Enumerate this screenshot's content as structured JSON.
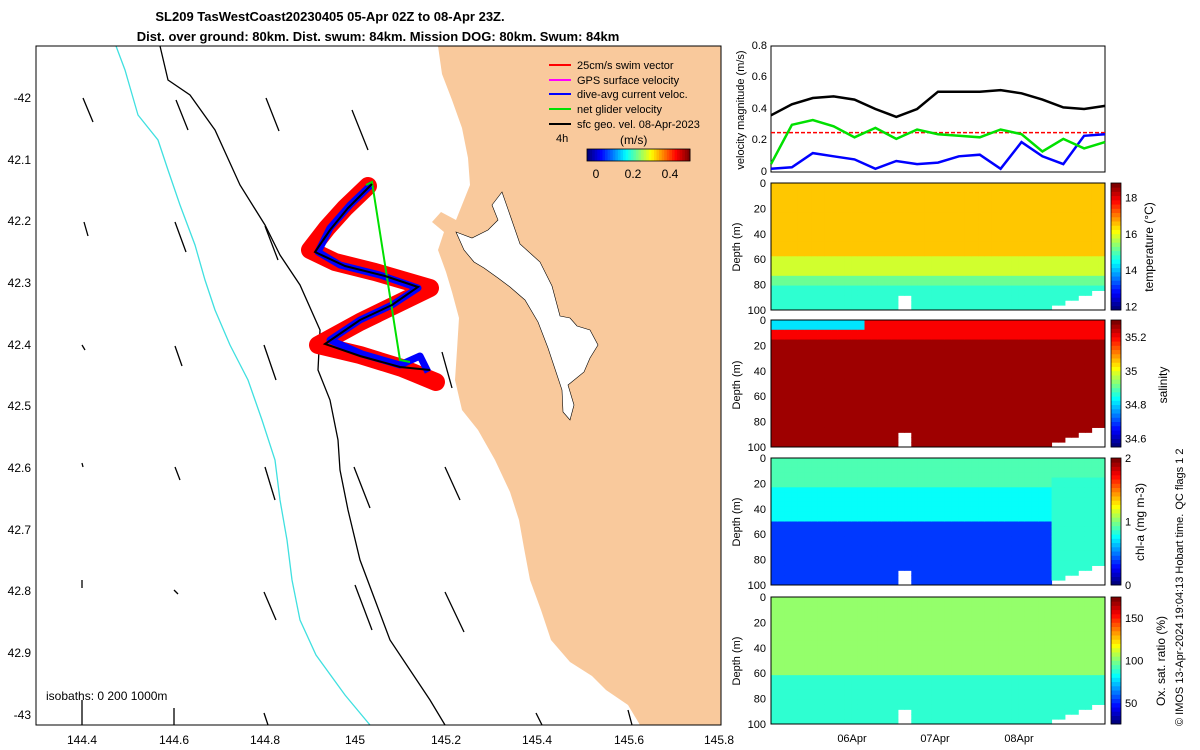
{
  "title": {
    "line1": "SL209 TasWestCoast20230405 05-Apr 02Z to 08-Apr 23Z.",
    "line2": "Dist. over ground: 80km. Dist. swum: 84km. Mission DOG: 80km. Swum: 84km"
  },
  "colors": {
    "land": "#f9c99c",
    "swim": "#ff0000",
    "gps": "#ff00ff",
    "current": "#0000ff",
    "net": "#00e000",
    "geo": "#000000",
    "isobath_200": "#40e0e0",
    "isobath_1000": "#000000"
  },
  "map": {
    "lon_ticks": [
      "144.4",
      "144.6",
      "144.8",
      "145",
      "145.2",
      "145.4",
      "145.6",
      "145.8"
    ],
    "lat_ticks": [
      "-42",
      "42.1",
      "42.2",
      "42.3",
      "42.4",
      "42.5",
      "42.6",
      "42.7",
      "42.8",
      "42.9",
      "-43"
    ],
    "lon_range": [
      144.35,
      145.8
    ],
    "lat_range": [
      -43.02,
      -41.97
    ],
    "legend": [
      {
        "label": "25cm/s swim vector",
        "color": "#ff0000"
      },
      {
        "label": "GPS surface velocity",
        "color": "#ff00ff"
      },
      {
        "label": "dive-avg current veloc.",
        "color": "#0000ff"
      },
      {
        "label": "net glider velocity",
        "color": "#00e000"
      },
      {
        "label": "sfc geo. vel. 08-Apr-2023",
        "color": "#000000"
      }
    ],
    "duration_label": "4h",
    "colorbar_label": "(m/s)",
    "colorbar_ticks": [
      "0",
      "0.2",
      "0.4"
    ],
    "isobaths_label": "isobaths: 0   200  1000m"
  },
  "chart_data": [
    {
      "type": "line",
      "title": "",
      "ylabel": "velocity magnitude (m/s)",
      "ylim": [
        0,
        0.8
      ],
      "yticks": [
        "0",
        "0.2",
        "0.4",
        "0.6",
        "0.8"
      ],
      "x": [
        0,
        0.25,
        0.5,
        0.75,
        1,
        1.25,
        1.5,
        1.75,
        2,
        2.25,
        2.5,
        2.75,
        3,
        3.25,
        3.5,
        3.75,
        4
      ],
      "series": [
        {
          "name": "sfc geo. vel.",
          "color": "#000000",
          "values": [
            0.36,
            0.43,
            0.47,
            0.48,
            0.46,
            0.4,
            0.35,
            0.4,
            0.51,
            0.51,
            0.51,
            0.52,
            0.5,
            0.46,
            0.41,
            0.4,
            0.42
          ]
        },
        {
          "name": "net glider velocity",
          "color": "#00e000",
          "values": [
            0.05,
            0.3,
            0.33,
            0.29,
            0.22,
            0.28,
            0.21,
            0.27,
            0.24,
            0.23,
            0.22,
            0.27,
            0.24,
            0.13,
            0.21,
            0.15,
            0.19
          ]
        },
        {
          "name": "dive-avg current veloc.",
          "color": "#0000ff",
          "values": [
            0.02,
            0.03,
            0.12,
            0.1,
            0.08,
            0.02,
            0.07,
            0.05,
            0.06,
            0.1,
            0.11,
            0.02,
            0.19,
            0.1,
            0.05,
            0.23,
            0.24
          ]
        },
        {
          "name": "25cm/s swim vector",
          "color": "#ff0000",
          "values": [
            0.25,
            0.25,
            0.25,
            0.25,
            0.25,
            0.25,
            0.25,
            0.25,
            0.25,
            0.25,
            0.25,
            0.25,
            0.25,
            0.25,
            0.25,
            0.25,
            0.25
          ]
        }
      ]
    },
    {
      "type": "heatmap",
      "variable": "temperature",
      "ylabel": "Depth (m)",
      "clabel": "temperature (°C)",
      "yticks": [
        "0",
        "20",
        "40",
        "60",
        "80",
        "100"
      ],
      "cticks": [
        "12",
        "14",
        "16",
        "18"
      ],
      "crange": [
        11.8,
        18.8
      ]
    },
    {
      "type": "heatmap",
      "variable": "salinity",
      "ylabel": "Depth (m)",
      "clabel": "salinity",
      "yticks": [
        "0",
        "20",
        "40",
        "60",
        "80",
        "100"
      ],
      "cticks": [
        "34.6",
        "34.8",
        "35",
        "35.2"
      ],
      "crange": [
        34.55,
        35.3
      ]
    },
    {
      "type": "heatmap",
      "variable": "chl-a",
      "ylabel": "Depth (m)",
      "clabel": "chl-a (mg m-3)",
      "yticks": [
        "0",
        "20",
        "40",
        "60",
        "80",
        "100"
      ],
      "cticks": [
        "0",
        "1",
        "2"
      ],
      "crange": [
        0,
        2
      ]
    },
    {
      "type": "heatmap",
      "variable": "oxygen",
      "ylabel": "Depth (m)",
      "clabel": "Ox. sat. ratio (%)",
      "yticks": [
        "0",
        "20",
        "40",
        "60",
        "80",
        "100"
      ],
      "cticks": [
        "50",
        "100",
        "150"
      ],
      "crange": [
        25,
        175
      ]
    }
  ],
  "time_axis": {
    "ticks": [
      "06Apr",
      "07Apr",
      "08Apr"
    ]
  },
  "flags_label": "QC flags 1  2",
  "credit": "© IMOS 13-Apr-2024 19:04:13 Hobart time."
}
